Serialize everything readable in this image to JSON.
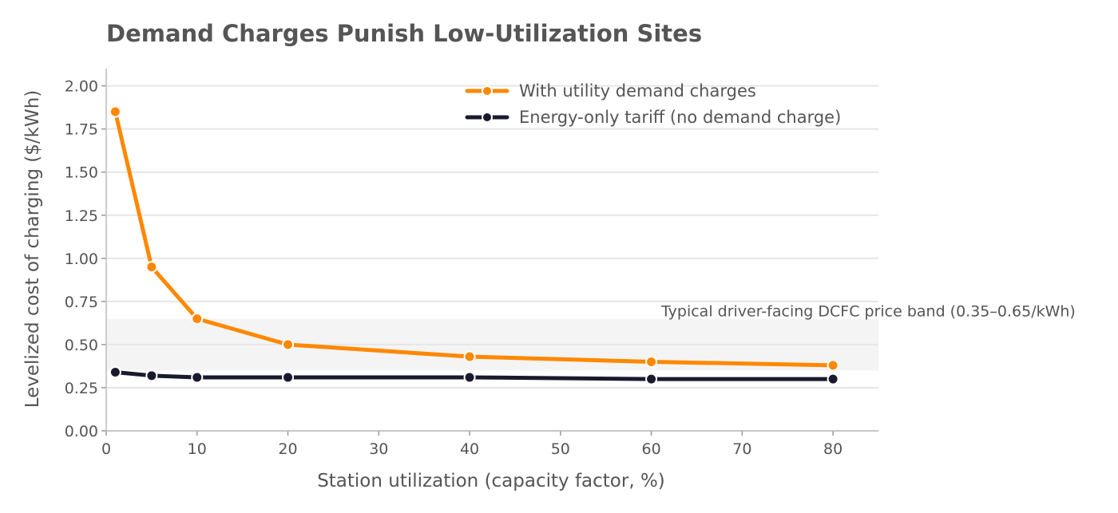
{
  "chart_data": {
    "type": "line",
    "title": "Demand Charges Punish Low-Utilization Sites",
    "xlabel": "Station utilization (capacity factor, %)",
    "ylabel": "Levelized cost of charging ($/kWh)",
    "xlim": [
      0,
      85
    ],
    "ylim": [
      0,
      2.1
    ],
    "xticks": [
      "0",
      "10",
      "20",
      "30",
      "40",
      "50",
      "60",
      "70",
      "80"
    ],
    "yticks": [
      "0.00",
      "0.25",
      "0.50",
      "0.75",
      "1.00",
      "1.25",
      "1.50",
      "1.75",
      "2.00"
    ],
    "grid": "horizontal",
    "legend_position": "top-right",
    "x": [
      1,
      5,
      10,
      20,
      40,
      60,
      80
    ],
    "series": [
      {
        "name": "With utility demand charges",
        "color": "#FF8800",
        "values": [
          1.85,
          0.95,
          0.65,
          0.5,
          0.43,
          0.4,
          0.38
        ]
      },
      {
        "name": "Energy-only tariff (no demand charge)",
        "color": "#1A1A2E",
        "values": [
          0.34,
          0.32,
          0.31,
          0.31,
          0.31,
          0.3,
          0.3
        ]
      }
    ],
    "band": {
      "y_low": 0.35,
      "y_high": 0.65,
      "label": "Typical driver-facing DCFC price band (0.35–0.65/kWh)"
    }
  }
}
